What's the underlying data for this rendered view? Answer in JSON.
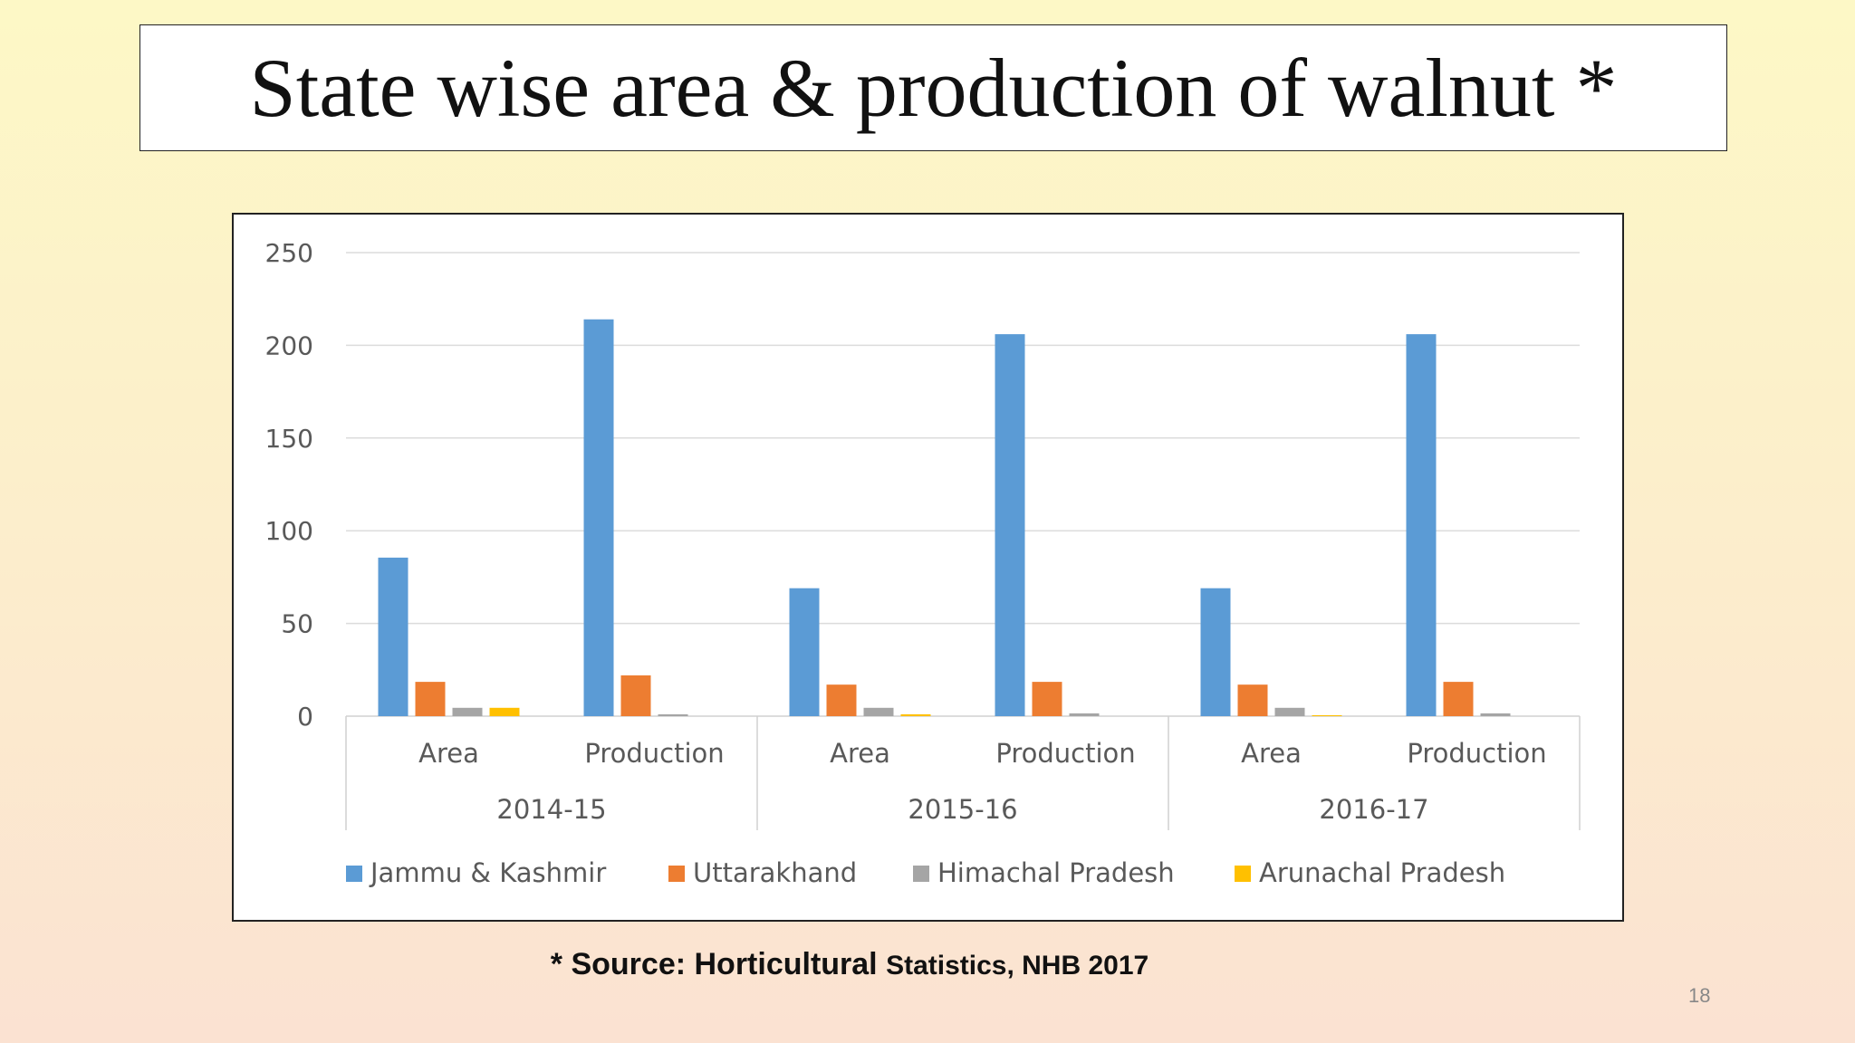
{
  "title": "State wise area & production of walnut *",
  "source": {
    "main": "* Source: Horticultural ",
    "rest": "Statistics, NHB 2017"
  },
  "page_number": "18",
  "chart_data": {
    "type": "bar",
    "title": "",
    "xlabel": "",
    "ylabel": "",
    "ylim": [
      0,
      250
    ],
    "yticks": [
      "0",
      "50",
      "100",
      "150",
      "200",
      "250"
    ],
    "grid": true,
    "legend_position": "bottom",
    "groups": [
      "2014-15",
      "2015-16",
      "2016-17"
    ],
    "subcategories": [
      "Area",
      "Production"
    ],
    "categories": [
      "2014-15 Area",
      "2014-15 Production",
      "2015-16 Area",
      "2015-16 Production",
      "2016-17 Area",
      "2016-17 Production"
    ],
    "series": [
      {
        "name": "Jammu & Kashmir",
        "color": "#5b9bd5",
        "values": [
          85.5,
          214,
          69,
          206,
          69,
          206
        ]
      },
      {
        "name": "Uttarakhand",
        "color": "#ed7d31",
        "values": [
          18.5,
          22,
          17,
          18.5,
          17,
          18.5
        ]
      },
      {
        "name": "Himachal Pradesh",
        "color": "#a5a5a5",
        "values": [
          4.5,
          1,
          4.5,
          1.5,
          4.5,
          1.5
        ]
      },
      {
        "name": "Arunachal Pradesh",
        "color": "#ffc000",
        "values": [
          4.5,
          0,
          1,
          0,
          0.5,
          0
        ]
      }
    ]
  }
}
